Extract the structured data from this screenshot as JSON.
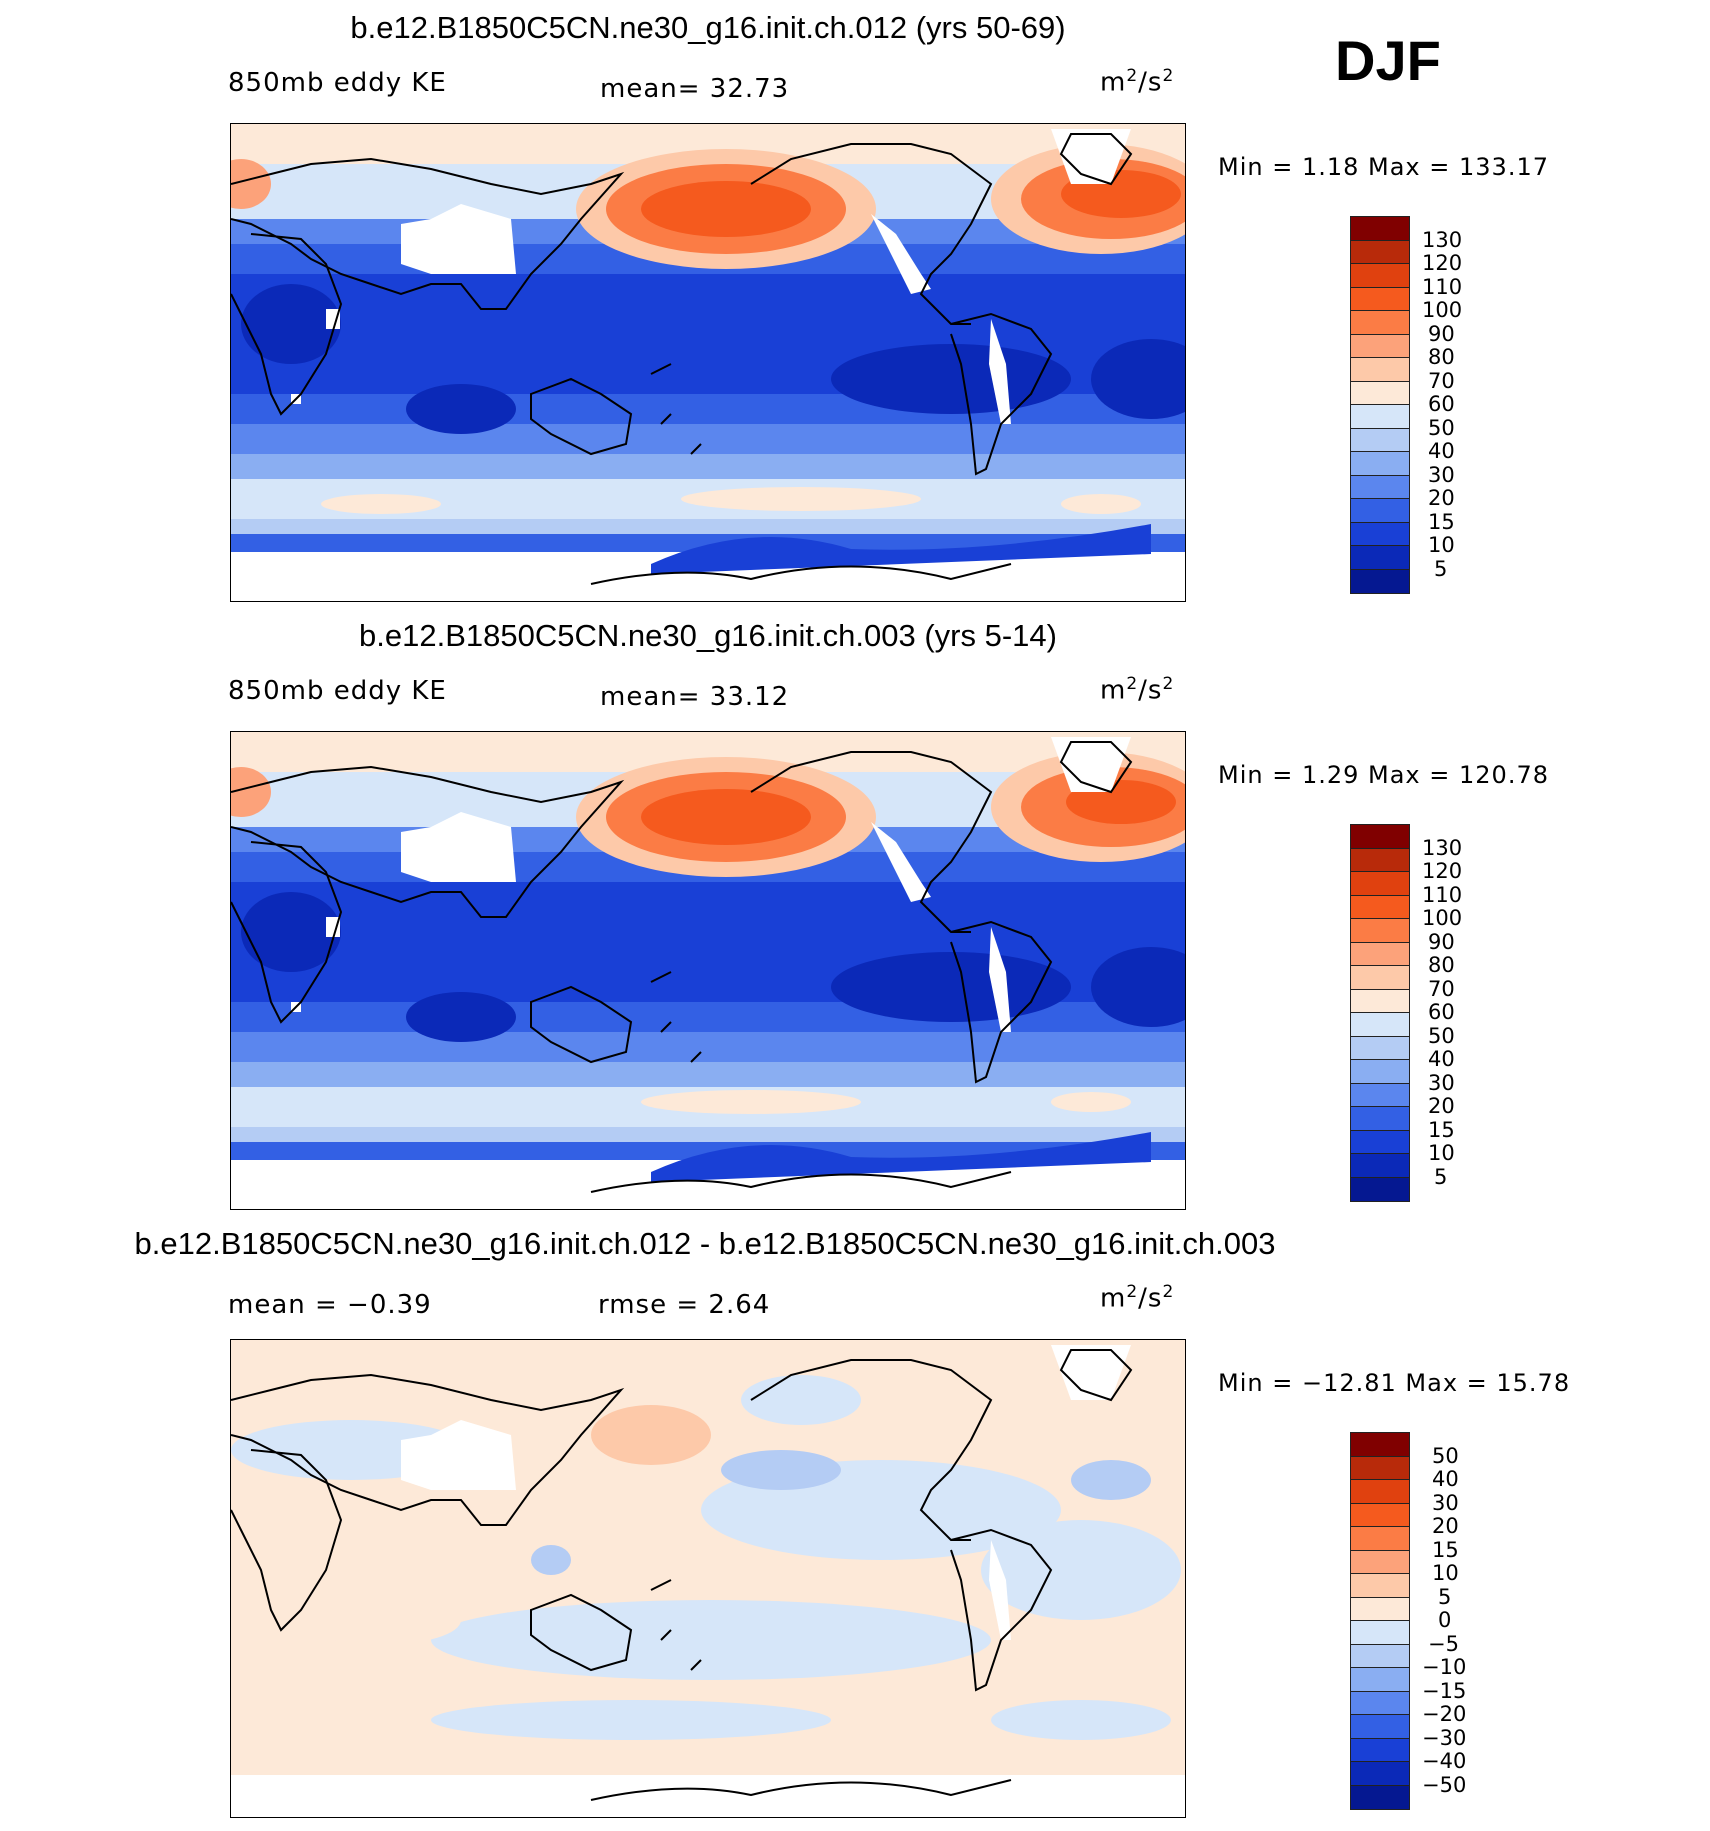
{
  "season": "DJF",
  "panels": [
    {
      "title": "b.e12.B1850C5CN.ne30_g16.init.ch.012 (yrs 50-69)",
      "left_label": "850mb eddy KE",
      "mid_label": "mean=  32.73",
      "units_base": "m",
      "units_sup1": "2",
      "units_mid": "/s",
      "units_sup2": "2",
      "minmax": "Min =   1.18 Max = 133.17",
      "cbar_ticks": [
        "130",
        "120",
        "110",
        "100",
        "90",
        "80",
        "70",
        "60",
        "50",
        "40",
        "30",
        "20",
        "15",
        "10",
        "5"
      ]
    },
    {
      "title": "b.e12.B1850C5CN.ne30_g16.init.ch.003 (yrs 5-14)",
      "left_label": "850mb eddy KE",
      "mid_label": "mean=  33.12",
      "units_base": "m",
      "units_sup1": "2",
      "units_mid": "/s",
      "units_sup2": "2",
      "minmax": "Min =   1.29 Max = 120.78",
      "cbar_ticks": [
        "130",
        "120",
        "110",
        "100",
        "90",
        "80",
        "70",
        "60",
        "50",
        "40",
        "30",
        "20",
        "15",
        "10",
        "5"
      ]
    },
    {
      "title": "b.e12.B1850C5CN.ne30_g16.init.ch.012 - b.e12.B1850C5CN.ne30_g16.init.ch.003",
      "left_label": "mean =  −0.39",
      "mid_label": "rmse =   2.64",
      "units_base": "m",
      "units_sup1": "2",
      "units_mid": "/s",
      "units_sup2": "2",
      "minmax": "Min = −12.81 Max =  15.78",
      "cbar_ticks": [
        "50",
        "40",
        "30",
        "20",
        "15",
        "10",
        "5",
        "0",
        "−5",
        "−10",
        "−15",
        "−20",
        "−30",
        "−40",
        "−50"
      ]
    }
  ],
  "colors": {
    "scale": [
      "#800000",
      "#b82a0a",
      "#e0410f",
      "#f55a1e",
      "#fb7c45",
      "#fca27a",
      "#fdc9a9",
      "#fde9d8",
      "#d6e6f9",
      "#b4ccf4",
      "#8aaef2",
      "#5b86ee",
      "#3360e4",
      "#1940d6",
      "#0b29b8",
      "#051891"
    ],
    "land_outline": "#000000",
    "missing": "#ffffff"
  },
  "chart_data": [
    {
      "type": "heatmap",
      "title": "b.e12.B1850C5CN.ne30_g16.init.ch.012 (yrs 50-69)",
      "variable": "850mb eddy KE",
      "units": "m2/s2",
      "mean": 32.73,
      "min": 1.18,
      "max": 133.17,
      "levels": [
        5,
        10,
        15,
        20,
        30,
        40,
        50,
        60,
        70,
        80,
        90,
        100,
        110,
        120,
        130
      ]
    },
    {
      "type": "heatmap",
      "title": "b.e12.B1850C5CN.ne30_g16.init.ch.003 (yrs 5-14)",
      "variable": "850mb eddy KE",
      "units": "m2/s2",
      "mean": 33.12,
      "min": 1.29,
      "max": 120.78,
      "levels": [
        5,
        10,
        15,
        20,
        30,
        40,
        50,
        60,
        70,
        80,
        90,
        100,
        110,
        120,
        130
      ]
    },
    {
      "type": "heatmap",
      "title": "b.e12.B1850C5CN.ne30_g16.init.ch.012 - b.e12.B1850C5CN.ne30_g16.init.ch.003",
      "units": "m2/s2",
      "mean": -0.39,
      "rmse": 2.64,
      "min": -12.81,
      "max": 15.78,
      "levels": [
        -50,
        -40,
        -30,
        -20,
        -15,
        -10,
        -5,
        0,
        5,
        10,
        15,
        20,
        30,
        40,
        50
      ]
    }
  ]
}
